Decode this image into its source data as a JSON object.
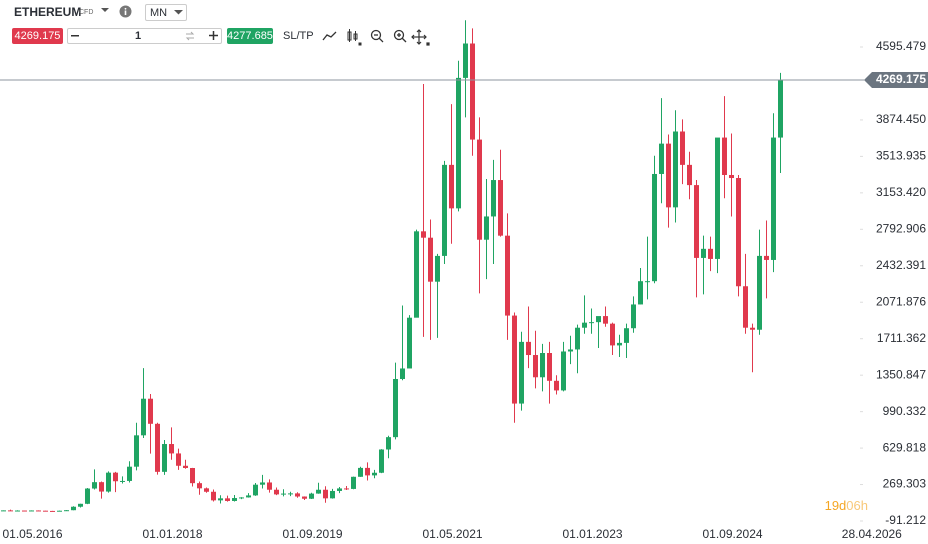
{
  "toolbar": {
    "symbol": "ETHEREUM",
    "instrument_type": "CFD",
    "timeframe": "MN",
    "sell_price": "4269.175",
    "quantity": "1",
    "buy_price": "4277.685",
    "sl_tp": "SL/TP"
  },
  "chart_data": {
    "type": "candlestick",
    "x": [
      "2016-05-01",
      "2016-06-01",
      "2016-07-01",
      "2016-08-01",
      "2016-09-01",
      "2016-10-01",
      "2016-11-01",
      "2016-12-01",
      "2017-01-01",
      "2017-02-01",
      "2017-03-01",
      "2017-04-01",
      "2017-05-01",
      "2017-06-01",
      "2017-07-01",
      "2017-08-01",
      "2017-09-01",
      "2017-10-01",
      "2017-11-01",
      "2017-12-01",
      "2018-01-01",
      "2018-02-01",
      "2018-03-01",
      "2018-04-01",
      "2018-05-01",
      "2018-06-01",
      "2018-07-01",
      "2018-08-01",
      "2018-09-01",
      "2018-10-01",
      "2018-11-01",
      "2018-12-01",
      "2019-01-01",
      "2019-02-01",
      "2019-03-01",
      "2019-04-01",
      "2019-05-01",
      "2019-06-01",
      "2019-07-01",
      "2019-08-01",
      "2019-09-01",
      "2019-10-01",
      "2019-11-01",
      "2019-12-01",
      "2020-01-01",
      "2020-02-01",
      "2020-03-01",
      "2020-04-01",
      "2020-05-01",
      "2020-06-01",
      "2020-07-01",
      "2020-08-01",
      "2020-09-01",
      "2020-10-01",
      "2020-11-01",
      "2020-12-01",
      "2021-01-01",
      "2021-02-01",
      "2021-03-01",
      "2021-04-01",
      "2021-05-01",
      "2021-06-01",
      "2021-07-01",
      "2021-08-01",
      "2021-09-01",
      "2021-10-01",
      "2021-11-01",
      "2021-12-01",
      "2022-01-01",
      "2022-02-01",
      "2022-03-01",
      "2022-04-01",
      "2022-05-01",
      "2022-06-01",
      "2022-07-01",
      "2022-08-01",
      "2022-09-01",
      "2022-10-01",
      "2022-11-01",
      "2022-12-01",
      "2023-01-01",
      "2023-02-01",
      "2023-03-01",
      "2023-04-01",
      "2023-05-01",
      "2023-06-01",
      "2023-07-01",
      "2023-08-01",
      "2023-09-01",
      "2023-10-01",
      "2023-11-01",
      "2023-12-01",
      "2024-01-01",
      "2024-02-01",
      "2024-03-01",
      "2024-04-01",
      "2024-05-01",
      "2024-06-01",
      "2024-07-01",
      "2024-08-01",
      "2024-09-01",
      "2024-10-01",
      "2024-11-01",
      "2024-12-01",
      "2025-01-01",
      "2025-02-01",
      "2025-03-01",
      "2025-04-01",
      "2025-05-01",
      "2025-06-01",
      "2025-07-01",
      "2025-08-01"
    ],
    "open": [
      9.4,
      14,
      12.5,
      12.5,
      11.5,
      13.2,
      11,
      8.6,
      8,
      10.7,
      15.7,
      50,
      79,
      230,
      293,
      200,
      387,
      302,
      305,
      446,
      756,
      1118,
      870,
      395,
      670,
      577,
      455,
      433,
      283,
      232,
      198,
      113,
      133,
      107,
      136,
      142,
      162,
      268,
      290,
      218,
      172,
      180,
      182,
      151,
      129,
      180,
      218,
      133,
      206,
      231,
      226,
      346,
      434,
      360,
      386,
      616,
      738,
      1313,
      1417,
      1919,
      2773,
      2710,
      2275,
      2530,
      3430,
      3000,
      4290,
      4630,
      3680,
      2690,
      2920,
      3280,
      2730,
      1940,
      1070,
      1680,
      1550,
      1330,
      1570,
      1295,
      1200,
      1585,
      1605,
      1820,
      1870,
      1875,
      1935,
      1860,
      1645,
      1670,
      1815,
      2050,
      2280,
      2280,
      3340,
      3640,
      3010,
      3760,
      3430,
      3230,
      2510,
      2600,
      2500,
      3700,
      3330,
      3300,
      2230,
      1820,
      1800,
      2530,
      2490,
      3700
    ],
    "high": [
      14.5,
      21,
      14.9,
      12.8,
      13.5,
      14,
      11.7,
      8.6,
      11.5,
      16.3,
      55,
      80,
      235,
      420,
      300,
      400,
      395,
      350,
      500,
      880,
      1420,
      1165,
      880,
      710,
      835,
      625,
      515,
      434,
      300,
      240,
      221,
      163,
      160,
      166,
      145,
      185,
      285,
      365,
      320,
      240,
      223,
      198,
      193,
      152,
      188,
      287,
      253,
      227,
      245,
      255,
      348,
      445,
      488,
      415,
      620,
      752,
      1475,
      2040,
      1945,
      2790,
      4230,
      2890,
      2550,
      3470,
      4030,
      4460,
      4860,
      4780,
      3900,
      3290,
      3480,
      3580,
      2950,
      1970,
      1780,
      2030,
      1790,
      1660,
      1680,
      1350,
      1680,
      1740,
      1850,
      2140,
      2010,
      1930,
      2030,
      1870,
      1750,
      1860,
      2130,
      2410,
      2720,
      3520,
      4090,
      3730,
      3970,
      3880,
      3560,
      3280,
      2730,
      2720,
      3680,
      4110,
      3740,
      3330,
      2550,
      1860,
      2790,
      2880,
      3940,
      4340
    ],
    "low": [
      8.9,
      11,
      10.5,
      10.5,
      11,
      10.5,
      8.5,
      6.5,
      7.9,
      10.5,
      15.3,
      43,
      76,
      220,
      130,
      190,
      195,
      280,
      290,
      410,
      730,
      575,
      367,
      365,
      515,
      415,
      425,
      250,
      168,
      188,
      102,
      82,
      100,
      102,
      125,
      140,
      158,
      230,
      190,
      165,
      153,
      155,
      139,
      117,
      126,
      179,
      90,
      130,
      185,
      215,
      223,
      345,
      310,
      332,
      382,
      530,
      716,
      1300,
      1420,
      1940,
      1730,
      1700,
      1720,
      2450,
      2650,
      2970,
      3900,
      3520,
      2160,
      2300,
      2450,
      2720,
      1700,
      880,
      1000,
      1420,
      1220,
      1190,
      1070,
      1160,
      1190,
      1460,
      1370,
      1760,
      1760,
      1620,
      1830,
      1550,
      1530,
      1520,
      1770,
      2050,
      2100,
      2260,
      3050,
      2810,
      2860,
      3240,
      3090,
      2120,
      2150,
      2380,
      2360,
      3100,
      2920,
      2130,
      1760,
      1380,
      1750,
      2110,
      2370,
      3350
    ],
    "close": [
      14,
      12.5,
      12.5,
      11.5,
      13.2,
      11,
      8.6,
      8,
      10.7,
      15.7,
      50,
      79,
      230,
      293,
      200,
      387,
      302,
      305,
      446,
      756,
      1118,
      870,
      395,
      670,
      577,
      455,
      433,
      283,
      232,
      198,
      113,
      133,
      107,
      136,
      142,
      162,
      268,
      290,
      218,
      172,
      180,
      182,
      151,
      129,
      180,
      218,
      133,
      206,
      231,
      226,
      346,
      434,
      360,
      386,
      616,
      738,
      1313,
      1417,
      1919,
      2773,
      2710,
      2275,
      2530,
      3430,
      3000,
      4290,
      4630,
      3680,
      2690,
      2920,
      3280,
      2730,
      1940,
      1070,
      1680,
      1550,
      1330,
      1570,
      1295,
      1200,
      1585,
      1605,
      1820,
      1870,
      1875,
      1935,
      1860,
      1645,
      1670,
      1815,
      2050,
      2280,
      2280,
      3340,
      3640,
      3010,
      3760,
      3430,
      3230,
      2510,
      2600,
      2500,
      3700,
      3330,
      3300,
      2230,
      1820,
      1800,
      2530,
      2490,
      3700,
      4269.175
    ],
    "up_color": "#1fa463",
    "down_color": "#e0394d",
    "ylim": [
      -180,
      4981
    ],
    "yticks": [
      -91.212,
      269.303,
      629.818,
      990.332,
      1350.847,
      1711.362,
      2071.876,
      2432.391,
      2792.906,
      {
        "value": 3153.42,
        "label": "3153.420"
      },
      3513.935,
      {
        "value": 3874.45,
        "label": "3874.450"
      },
      4595.479
    ],
    "xticks": [
      {
        "value": "2016-05-01",
        "label": "01.05.2016"
      },
      {
        "value": "2018-01-01",
        "label": "01.01.2018"
      },
      {
        "value": "2019-09-01",
        "label": "01.09.2019"
      },
      {
        "value": "2021-05-01",
        "label": "01.05.2021"
      },
      {
        "value": "2023-01-01",
        "label": "01.01.2023"
      },
      {
        "value": "2024-09-01",
        "label": "01.09.2024"
      },
      {
        "value": "2026-04-28",
        "label": "28.04.2026"
      }
    ],
    "last_price": 4269.175,
    "countdown_days": "19d",
    "countdown_hours": "06h"
  }
}
